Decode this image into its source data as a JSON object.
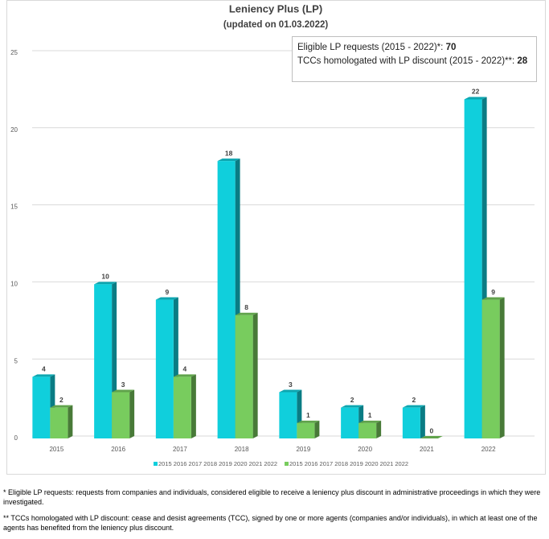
{
  "chart_data": {
    "type": "bar3d",
    "title": "Leniency Plus (LP)",
    "subtitle": "(updated  on 01.03.2022)",
    "categories": [
      "2015",
      "2016",
      "2017",
      "2018",
      "2019",
      "2020",
      "2021",
      "2022"
    ],
    "series": [
      {
        "name": "2015 2016 2017 2018 2019 2020 2021 2022",
        "color": "#10cfdc",
        "values": [
          4,
          10,
          9,
          18,
          3,
          2,
          2,
          22
        ]
      },
      {
        "name": "2015 2016 2017 2018 2019 2020 2021 2022",
        "color": "#78cc5e",
        "values": [
          2,
          3,
          4,
          8,
          1,
          1,
          0,
          9
        ]
      }
    ],
    "ylim": [
      0,
      25
    ],
    "yticks": [
      0,
      5,
      10,
      15,
      20,
      25
    ],
    "grid": true,
    "annotations": [
      {
        "label": "Eligible LP requests (2015 - 2022)*:",
        "value": 70
      },
      {
        "label": "TCCs homologated with LP discount (2015 - 2022)**:",
        "value": 28
      }
    ]
  },
  "footnotes": [
    "* Eligible LP requests: requests from companies and individuals, considered eligible to receive a leniency plus discount in administrative proceedings in which they were investigated.",
    "** TCCs homologated with LP discount: cease and desist agreements (TCC), signed by one or more agents (companies and/or individuals), in which at least one of the agents has benefited from the leniency plus discount."
  ]
}
